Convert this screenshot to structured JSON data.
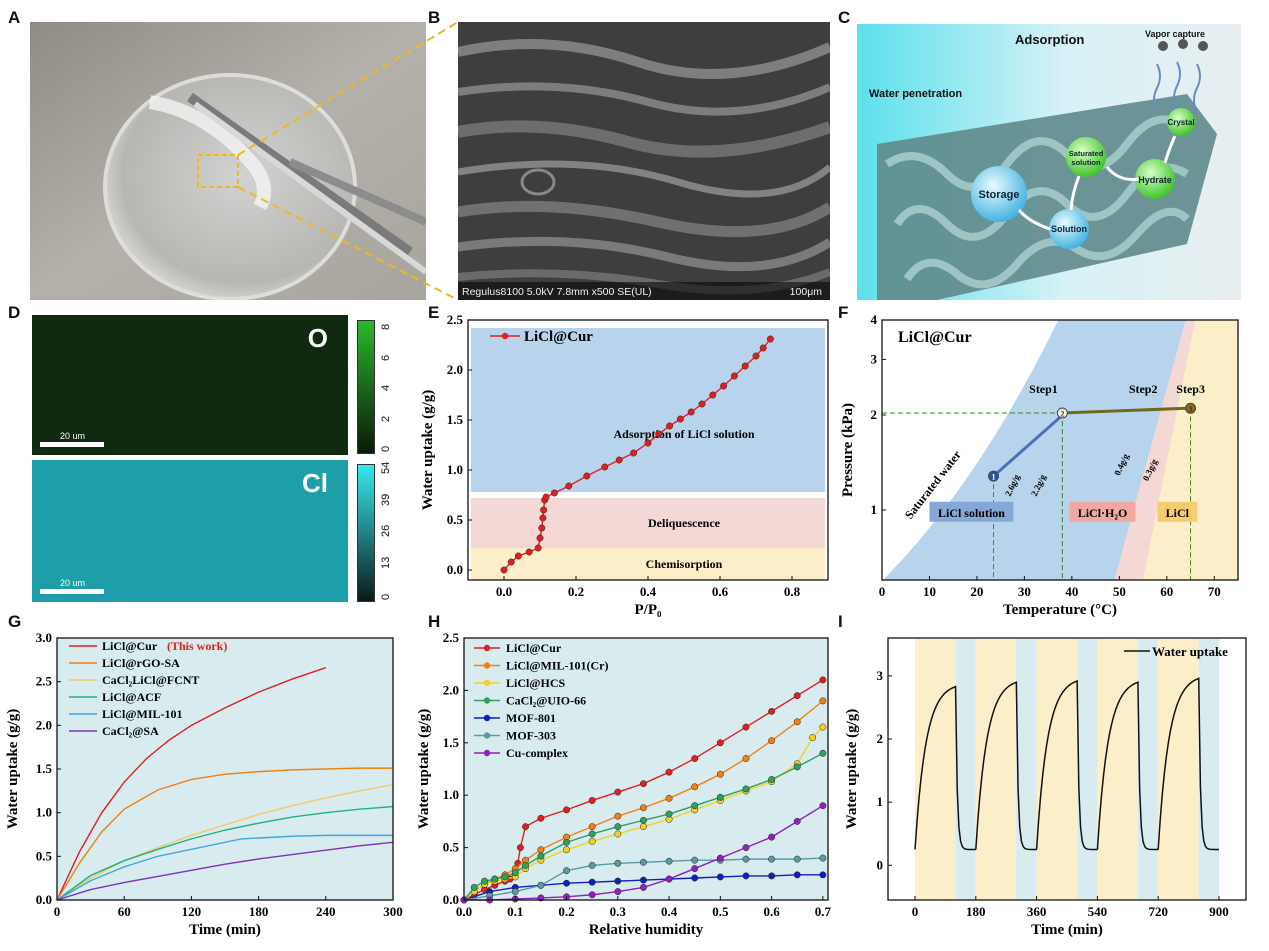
{
  "panels": {
    "A": {
      "letter": "A"
    },
    "B": {
      "letter": "B",
      "sem_caption": "Regulus8100 5.0kV 7.8mm x500 SE(UL)",
      "scale_bar": "100μm"
    },
    "C": {
      "letter": "C",
      "adsorption": "Adsorption",
      "vapor_capture": "Vapor capture",
      "water_penetration": "Water penetration",
      "nodes": {
        "storage": "Storage",
        "solution": "Solution",
        "saturated_1": "Saturated",
        "saturated_2": "solution",
        "hydrate": "Hydrate",
        "crystal": "Crystal"
      }
    },
    "D": {
      "letter": "D",
      "o_label": "O",
      "cl_label": "Cl",
      "scale_bar": "20 um",
      "o_ticks": [
        "8",
        "6",
        "4",
        "2",
        "0"
      ],
      "cl_ticks": [
        "54",
        "39",
        "26",
        "13",
        "0"
      ]
    },
    "E": {
      "letter": "E"
    },
    "F": {
      "letter": "F"
    },
    "G": {
      "letter": "G"
    },
    "H": {
      "letter": "H"
    },
    "I": {
      "letter": "I"
    }
  },
  "colors": {
    "bg_teal": "#d8ecf0",
    "band_blue": "#b8d4ec",
    "band_pink": "#f3d8d6",
    "band_yellow": "#fbeec9"
  },
  "chart_data": [
    {
      "id": "E",
      "type": "line",
      "xlabel": "P/P₀",
      "ylabel": "Water uptake (g/g)",
      "xlim": [
        -0.1,
        0.9
      ],
      "ylim": [
        -0.1,
        2.5
      ],
      "xticks": [
        "0.0",
        "0.2",
        "0.4",
        "0.6",
        "0.8"
      ],
      "yticks": [
        "0.0",
        "0.5",
        "1.0",
        "1.5",
        "2.0",
        "2.5"
      ],
      "legend": "LiCl@Cur",
      "regions": [
        {
          "label": "Chemisorption",
          "y": [
            -0.1,
            0.22
          ],
          "color": "#fbeec9"
        },
        {
          "label": "Deliquescence",
          "y": [
            0.22,
            0.72
          ],
          "color": "#f3d8d6"
        },
        {
          "label": "Adsorption of LiCl solution",
          "y": [
            0.78,
            2.42
          ],
          "color": "#b8d4ec"
        }
      ],
      "series": [
        {
          "name": "LiCl@Cur",
          "color": "#e02020",
          "x": [
            0.0,
            0.02,
            0.04,
            0.07,
            0.095,
            0.1,
            0.105,
            0.108,
            0.11,
            0.113,
            0.117,
            0.14,
            0.18,
            0.23,
            0.28,
            0.32,
            0.36,
            0.4,
            0.43,
            0.46,
            0.49,
            0.52,
            0.55,
            0.58,
            0.61,
            0.64,
            0.67,
            0.7,
            0.72,
            0.74
          ],
          "y": [
            0.0,
            0.08,
            0.14,
            0.18,
            0.22,
            0.32,
            0.42,
            0.52,
            0.6,
            0.7,
            0.73,
            0.77,
            0.84,
            0.94,
            1.03,
            1.1,
            1.17,
            1.27,
            1.36,
            1.44,
            1.51,
            1.58,
            1.66,
            1.75,
            1.84,
            1.94,
            2.04,
            2.14,
            2.22,
            2.31
          ]
        }
      ]
    },
    {
      "id": "F",
      "type": "line",
      "title": "LiCl@Cur",
      "xlabel": "Temperature (°C)",
      "ylabel": "Pressure (kPa)",
      "xlim": [
        0,
        75
      ],
      "yscale": "log",
      "ylim": [
        0.6,
        4
      ],
      "xticks": [
        "0",
        "10",
        "20",
        "30",
        "40",
        "50",
        "60",
        "70"
      ],
      "yticks": [
        "1",
        "2",
        "3",
        "4"
      ],
      "labels": {
        "saturated_water": "Saturated water",
        "licl_solution": "LiCl solution",
        "licl_h2o": "LiCl·H₂O",
        "licl": "LiCl",
        "step1": "Step1",
        "step2": "Step2",
        "step3": "Step3",
        "c1": "2.6g/g",
        "c2": "2.2g/g",
        "c3": "0.4g/g",
        "c4": "0.3g/g"
      },
      "points": [
        {
          "label": "1",
          "x": 23.5,
          "y": 1.28
        },
        {
          "label": "2",
          "x": 38,
          "y": 2.03
        },
        {
          "label": "3",
          "x": 65,
          "y": 2.1
        }
      ]
    },
    {
      "id": "G",
      "type": "line",
      "xlabel": "Time (min)",
      "ylabel": "Water uptake (g/g)",
      "xlim": [
        0,
        300
      ],
      "ylim": [
        0,
        3.0
      ],
      "xticks": [
        "0",
        "60",
        "120",
        "180",
        "240",
        "300"
      ],
      "yticks": [
        "0.0",
        "0.5",
        "1.0",
        "1.5",
        "2.0",
        "2.5",
        "3.0"
      ],
      "this_work": "(This work)",
      "series": [
        {
          "name": "LiCl@Cur",
          "color": "#e02020",
          "x": [
            0,
            20,
            40,
            60,
            80,
            100,
            120,
            150,
            180,
            210,
            240
          ],
          "y": [
            0,
            0.55,
            1.0,
            1.35,
            1.62,
            1.83,
            2.0,
            2.2,
            2.38,
            2.53,
            2.66
          ]
        },
        {
          "name": "LiCl@rGO-SA",
          "color": "#f08010",
          "x": [
            0,
            20,
            40,
            60,
            90,
            120,
            150,
            180,
            210,
            240,
            270,
            300
          ],
          "y": [
            0,
            0.42,
            0.78,
            1.04,
            1.26,
            1.38,
            1.44,
            1.47,
            1.49,
            1.5,
            1.51,
            1.51
          ]
        },
        {
          "name": "CaCl₂LiCl@FCNT",
          "color": "#f4c860",
          "x": [
            0,
            30,
            60,
            90,
            120,
            150,
            180,
            210,
            240,
            270,
            300
          ],
          "y": [
            0,
            0.25,
            0.45,
            0.6,
            0.74,
            0.86,
            0.98,
            1.08,
            1.17,
            1.25,
            1.32
          ]
        },
        {
          "name": "LiCl@ACF",
          "color": "#20b080",
          "x": [
            0,
            30,
            60,
            90,
            120,
            150,
            180,
            210,
            240,
            270,
            300
          ],
          "y": [
            0,
            0.28,
            0.45,
            0.58,
            0.7,
            0.8,
            0.88,
            0.95,
            1.0,
            1.04,
            1.07
          ]
        },
        {
          "name": "LiCl@MIL-101",
          "color": "#40a8e0",
          "x": [
            0,
            30,
            60,
            90,
            120,
            150,
            165,
            180,
            210,
            240,
            270,
            300
          ],
          "y": [
            0,
            0.22,
            0.38,
            0.5,
            0.58,
            0.66,
            0.7,
            0.71,
            0.73,
            0.74,
            0.74,
            0.74
          ]
        },
        {
          "name": "CaCl₂@SA",
          "color": "#8030c0",
          "x": [
            0,
            30,
            60,
            90,
            120,
            150,
            180,
            210,
            240,
            270,
            300
          ],
          "y": [
            0,
            0.12,
            0.2,
            0.27,
            0.34,
            0.41,
            0.47,
            0.52,
            0.57,
            0.62,
            0.66
          ]
        }
      ]
    },
    {
      "id": "H",
      "type": "line",
      "xlabel": "Relative humidity",
      "ylabel": "Water uptake (g/g)",
      "xlim": [
        0,
        0.71
      ],
      "ylim": [
        0,
        2.5
      ],
      "xticks": [
        "0.0",
        "0.1",
        "0.2",
        "0.3",
        "0.4",
        "0.5",
        "0.6",
        "0.7"
      ],
      "yticks": [
        "0.0",
        "0.5",
        "1.0",
        "1.5",
        "2.0",
        "2.5"
      ],
      "series": [
        {
          "name": "LiCl@Cur",
          "color": "#e02020",
          "x": [
            0.0,
            0.02,
            0.04,
            0.06,
            0.08,
            0.09,
            0.1,
            0.105,
            0.11,
            0.12,
            0.15,
            0.2,
            0.25,
            0.3,
            0.35,
            0.4,
            0.45,
            0.5,
            0.55,
            0.6,
            0.65,
            0.7
          ],
          "y": [
            0.0,
            0.05,
            0.1,
            0.14,
            0.18,
            0.2,
            0.24,
            0.35,
            0.5,
            0.7,
            0.78,
            0.86,
            0.95,
            1.03,
            1.11,
            1.22,
            1.35,
            1.5,
            1.65,
            1.8,
            1.95,
            2.1
          ]
        },
        {
          "name": "LiCl@MIL-101(Cr)",
          "color": "#f08010",
          "x": [
            0.0,
            0.02,
            0.04,
            0.06,
            0.08,
            0.1,
            0.12,
            0.15,
            0.2,
            0.25,
            0.3,
            0.35,
            0.4,
            0.45,
            0.5,
            0.55,
            0.6,
            0.65,
            0.7
          ],
          "y": [
            0.0,
            0.08,
            0.15,
            0.2,
            0.24,
            0.3,
            0.38,
            0.48,
            0.6,
            0.7,
            0.8,
            0.88,
            0.97,
            1.08,
            1.2,
            1.35,
            1.52,
            1.7,
            1.9
          ]
        },
        {
          "name": "LiCl@HCS",
          "color": "#f4d020",
          "x": [
            0.0,
            0.02,
            0.04,
            0.06,
            0.08,
            0.1,
            0.12,
            0.15,
            0.2,
            0.25,
            0.3,
            0.35,
            0.4,
            0.45,
            0.5,
            0.55,
            0.6,
            0.65,
            0.68,
            0.7
          ],
          "y": [
            0.0,
            0.08,
            0.15,
            0.18,
            0.2,
            0.22,
            0.3,
            0.38,
            0.48,
            0.56,
            0.63,
            0.7,
            0.77,
            0.86,
            0.95,
            1.04,
            1.13,
            1.3,
            1.55,
            1.65
          ]
        },
        {
          "name": "CaCl₂@UIO-66",
          "color": "#30a060",
          "x": [
            0.0,
            0.02,
            0.04,
            0.06,
            0.08,
            0.1,
            0.12,
            0.15,
            0.2,
            0.25,
            0.3,
            0.35,
            0.4,
            0.45,
            0.5,
            0.55,
            0.6,
            0.65,
            0.7
          ],
          "y": [
            0.0,
            0.12,
            0.18,
            0.2,
            0.22,
            0.26,
            0.33,
            0.42,
            0.55,
            0.63,
            0.7,
            0.76,
            0.82,
            0.9,
            0.98,
            1.06,
            1.15,
            1.27,
            1.4
          ]
        },
        {
          "name": "MOF-801",
          "color": "#1020c0",
          "x": [
            0.0,
            0.05,
            0.1,
            0.15,
            0.2,
            0.25,
            0.3,
            0.35,
            0.4,
            0.45,
            0.5,
            0.55,
            0.6,
            0.65,
            0.7
          ],
          "y": [
            0.0,
            0.08,
            0.12,
            0.14,
            0.16,
            0.17,
            0.18,
            0.19,
            0.2,
            0.21,
            0.22,
            0.23,
            0.23,
            0.24,
            0.24
          ]
        },
        {
          "name": "MOF-303",
          "color": "#5a9aa0",
          "x": [
            0.0,
            0.05,
            0.1,
            0.15,
            0.2,
            0.25,
            0.3,
            0.35,
            0.4,
            0.45,
            0.5,
            0.55,
            0.6,
            0.65,
            0.7
          ],
          "y": [
            0.0,
            0.04,
            0.08,
            0.14,
            0.28,
            0.33,
            0.35,
            0.36,
            0.37,
            0.38,
            0.38,
            0.39,
            0.39,
            0.39,
            0.4
          ]
        },
        {
          "name": "Cu-complex",
          "color": "#9020c0",
          "x": [
            0.0,
            0.05,
            0.1,
            0.15,
            0.2,
            0.25,
            0.3,
            0.35,
            0.4,
            0.45,
            0.5,
            0.55,
            0.6,
            0.65,
            0.7
          ],
          "y": [
            0.0,
            0.0,
            0.01,
            0.02,
            0.03,
            0.05,
            0.08,
            0.12,
            0.2,
            0.3,
            0.4,
            0.5,
            0.6,
            0.75,
            0.9
          ]
        }
      ]
    },
    {
      "id": "I",
      "type": "line",
      "xlabel": "Time (min)",
      "ylabel": "Water uptake (g/g)",
      "xlim": [
        -80,
        980
      ],
      "ylim": [
        -0.55,
        3.6
      ],
      "xticks": [
        "0",
        "180",
        "360",
        "540",
        "720",
        "900"
      ],
      "yticks": [
        "0",
        "1",
        "2",
        "3"
      ],
      "legend": "Water uptake",
      "series": [
        {
          "name": "Water uptake",
          "color": "#111111"
        }
      ]
    }
  ]
}
